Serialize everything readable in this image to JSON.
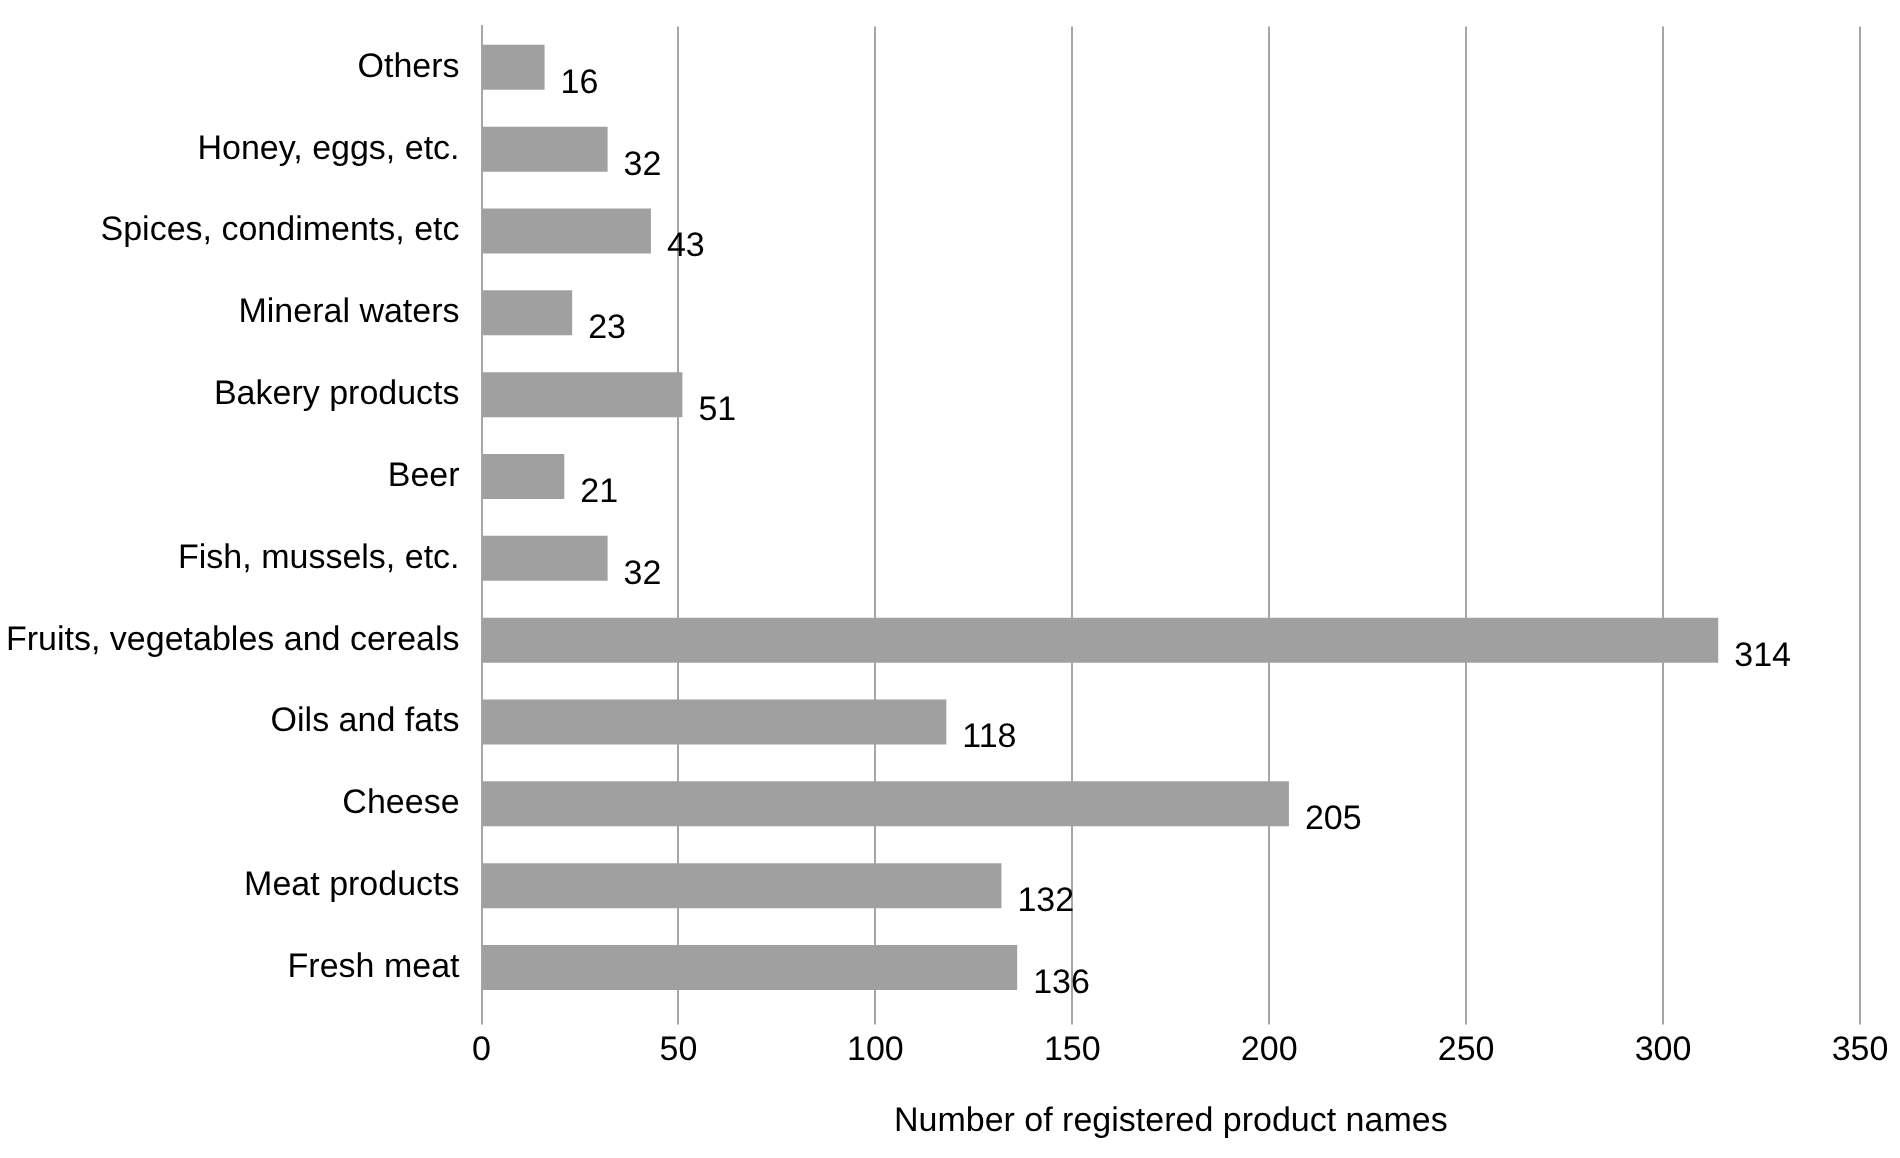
{
  "chart_data": {
    "type": "bar",
    "orientation": "horizontal",
    "xlabel": "Number of registered product names",
    "categories": [
      "Others",
      "Honey, eggs, etc.",
      "Spices, condiments, etc",
      "Mineral waters",
      "Bakery products",
      "Beer",
      "Fish, mussels, etc.",
      "Fruits, vegetables and cereals",
      "Oils and fats",
      "Cheese",
      "Meat products",
      "Fresh meat"
    ],
    "values": [
      16,
      32,
      43,
      23,
      51,
      21,
      32,
      314,
      118,
      205,
      132,
      136
    ],
    "color": "#a0a0a0",
    "xlim": [
      0,
      350
    ],
    "xticks": [
      0,
      50,
      100,
      150,
      200,
      250,
      300,
      350
    ],
    "grid": "x",
    "data_labels": true,
    "legend": false
  }
}
